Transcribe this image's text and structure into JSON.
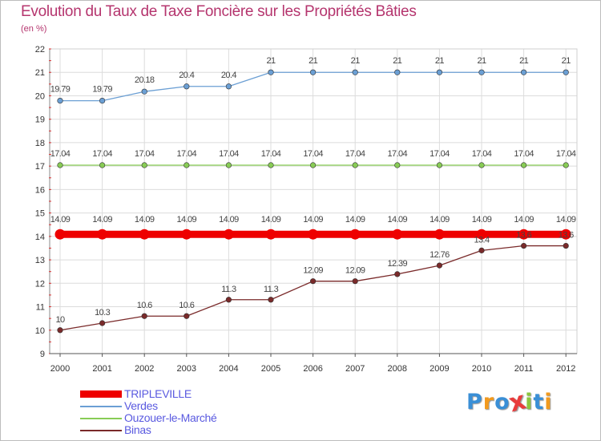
{
  "title": "Evolution du Taux de Taxe Foncière sur les Propriétés Bâties",
  "subtitle": "(en %)",
  "logo": "Proxiti",
  "chart_data": {
    "type": "line",
    "x": [
      "2000",
      "2001",
      "2002",
      "2003",
      "2004",
      "2005",
      "2006",
      "2007",
      "2008",
      "2009",
      "2010",
      "2011",
      "2012"
    ],
    "ylim": [
      9,
      22
    ],
    "yticks": [
      9,
      10,
      11,
      12,
      13,
      14,
      15,
      16,
      17,
      18,
      19,
      20,
      21,
      22
    ],
    "grid": true,
    "legend_position": "bottom-left",
    "series": [
      {
        "name": "TRIPLEVILLE",
        "color": "#ee0000",
        "values": [
          14.09,
          14.09,
          14.09,
          14.09,
          14.09,
          14.09,
          14.09,
          14.09,
          14.09,
          14.09,
          14.09,
          14.09,
          14.09
        ],
        "labels": [
          "14.09",
          "14.09",
          "14.09",
          "14.09",
          "14.09",
          "14.09",
          "14.09",
          "14.09",
          "14.09",
          "14.09",
          "14.09",
          "14.09",
          "14.09"
        ]
      },
      {
        "name": "Verdes",
        "color": "#6b9fd4",
        "values": [
          19.79,
          19.79,
          20.18,
          20.4,
          20.4,
          21,
          21,
          21,
          21,
          21,
          21,
          21,
          21
        ],
        "labels": [
          "19.79",
          "19.79",
          "20.18",
          "20.4",
          "20.4",
          "21",
          "21",
          "21",
          "21",
          "21",
          "21",
          "21",
          "21"
        ]
      },
      {
        "name": "Ouzouer-le-Marché",
        "color": "#88cc55",
        "values": [
          17.04,
          17.04,
          17.04,
          17.04,
          17.04,
          17.04,
          17.04,
          17.04,
          17.04,
          17.04,
          17.04,
          17.04,
          17.04
        ],
        "labels": [
          "17.04",
          "17.04",
          "17.04",
          "17.04",
          "17.04",
          "17.04",
          "17.04",
          "17.04",
          "17.04",
          "17.04",
          "17.04",
          "17.04",
          "17.04"
        ]
      },
      {
        "name": "Binas",
        "color": "#7a2a2a",
        "values": [
          10,
          10.3,
          10.6,
          10.6,
          11.3,
          11.3,
          12.09,
          12.09,
          12.39,
          12.76,
          13.4,
          13.6,
          13.6
        ],
        "labels": [
          "10",
          "10.3",
          "10.6",
          "10.6",
          "11.3",
          "11.3",
          "12.09",
          "12.09",
          "12.39",
          "12.76",
          "13.4",
          "13.6",
          "13.6"
        ]
      }
    ]
  }
}
